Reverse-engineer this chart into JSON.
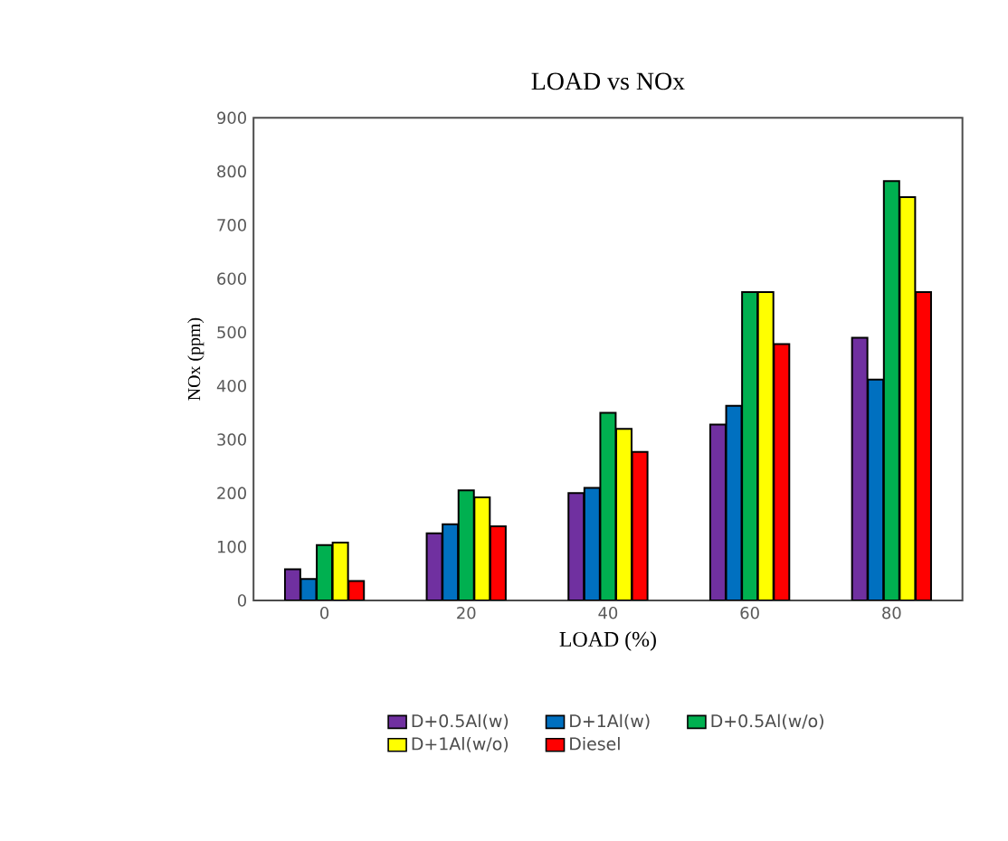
{
  "chart_data": {
    "type": "bar",
    "title": "LOAD vs NOx",
    "xlabel": "LOAD (%)",
    "ylabel": "NOx (ppm)",
    "categories": [
      "0",
      "20",
      "40",
      "60",
      "80"
    ],
    "series": [
      {
        "name": "D+0.5Al(w)",
        "color": "#7030a0",
        "values": [
          58,
          125,
          200,
          328,
          490
        ]
      },
      {
        "name": "D+1Al(w)",
        "color": "#0070c0",
        "values": [
          40,
          142,
          210,
          363,
          412
        ]
      },
      {
        "name": "D+0.5Al(w/o)",
        "color": "#00b050",
        "values": [
          103,
          205,
          350,
          575,
          782
        ]
      },
      {
        "name": "D+1Al(w/o)",
        "color": "#ffff00",
        "values": [
          108,
          192,
          320,
          575,
          752
        ]
      },
      {
        "name": "Diesel",
        "color": "#ff0000",
        "values": [
          36,
          138,
          277,
          478,
          575
        ]
      }
    ],
    "ylim": [
      0,
      900
    ],
    "yticks": [
      0,
      100,
      200,
      300,
      400,
      500,
      600,
      700,
      800,
      900
    ],
    "legend": "bottom",
    "grid": false
  }
}
